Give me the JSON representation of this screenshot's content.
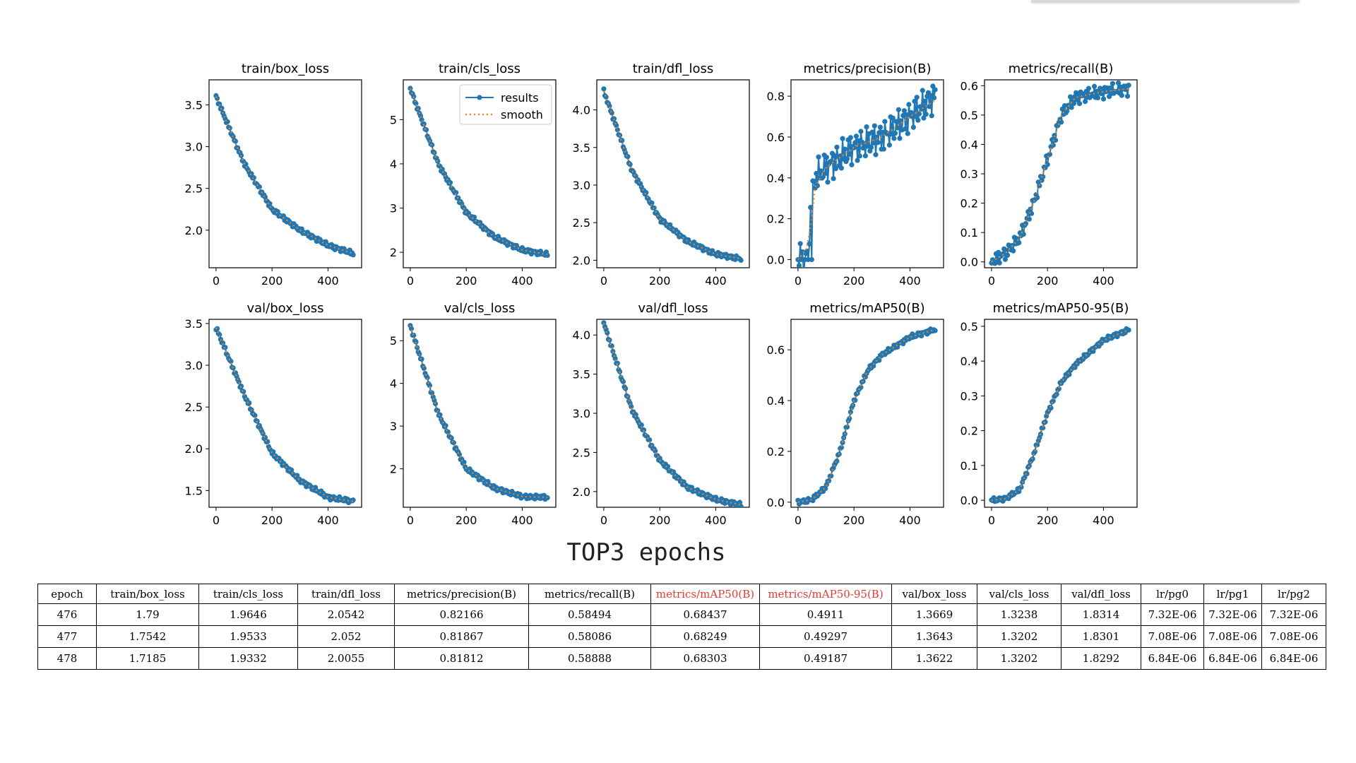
{
  "chart_data": [
    {
      "type": "line",
      "title": "train/box_loss",
      "ylim": [
        1.55,
        3.8
      ],
      "xlim": [
        -25,
        520
      ],
      "yticks": [
        2.0,
        2.5,
        3.0,
        3.5
      ],
      "xticks": [
        0,
        200,
        400
      ],
      "x": [
        0,
        100,
        200,
        300,
        400,
        490
      ],
      "series": [
        {
          "name": "results",
          "values": [
            3.6,
            2.8,
            2.25,
            2.0,
            1.82,
            1.72
          ]
        },
        {
          "name": "smooth",
          "values": [
            3.6,
            2.8,
            2.25,
            2.0,
            1.82,
            1.72
          ]
        }
      ]
    },
    {
      "type": "line",
      "title": "train/cls_loss",
      "ylim": [
        1.65,
        5.9
      ],
      "xlim": [
        -25,
        520
      ],
      "yticks": [
        2,
        3,
        4,
        5
      ],
      "xticks": [
        0,
        200,
        400
      ],
      "x": [
        0,
        100,
        200,
        300,
        400,
        490
      ],
      "series": [
        {
          "name": "results",
          "values": [
            5.7,
            4.0,
            2.9,
            2.35,
            2.05,
            1.95
          ]
        },
        {
          "name": "smooth",
          "values": [
            5.7,
            4.0,
            2.9,
            2.35,
            2.05,
            1.95
          ]
        }
      ]
    },
    {
      "type": "line",
      "title": "train/dfl_loss",
      "ylim": [
        1.9,
        4.4
      ],
      "xlim": [
        -25,
        520
      ],
      "yticks": [
        2.0,
        2.5,
        3.0,
        3.5,
        4.0
      ],
      "xticks": [
        0,
        200,
        400
      ],
      "x": [
        0,
        100,
        200,
        300,
        400,
        490
      ],
      "series": [
        {
          "name": "results",
          "values": [
            4.25,
            3.2,
            2.55,
            2.25,
            2.08,
            2.02
          ]
        },
        {
          "name": "smooth",
          "values": [
            4.25,
            3.2,
            2.55,
            2.25,
            2.08,
            2.02
          ]
        }
      ]
    },
    {
      "type": "line",
      "title": "metrics/precision(B)",
      "ylim": [
        -0.04,
        0.88
      ],
      "xlim": [
        -25,
        520
      ],
      "yticks": [
        0.0,
        0.2,
        0.4,
        0.6,
        0.8
      ],
      "xticks": [
        0,
        200,
        400
      ],
      "x": [
        0,
        30,
        50,
        60,
        100,
        200,
        300,
        400,
        490
      ],
      "series": [
        {
          "name": "results",
          "values": [
            0.0,
            0.0,
            0.3,
            0.4,
            0.45,
            0.55,
            0.6,
            0.7,
            0.8
          ]
        },
        {
          "name": "smooth",
          "values": [
            0.0,
            0.05,
            0.2,
            0.35,
            0.45,
            0.55,
            0.6,
            0.7,
            0.78
          ]
        }
      ]
    },
    {
      "type": "line",
      "title": "metrics/recall(B)",
      "ylim": [
        -0.02,
        0.62
      ],
      "xlim": [
        -25,
        520
      ],
      "yticks": [
        0.0,
        0.1,
        0.2,
        0.3,
        0.4,
        0.5,
        0.6
      ],
      "xticks": [
        0,
        200,
        400
      ],
      "x": [
        0,
        50,
        100,
        150,
        200,
        250,
        300,
        400,
        490
      ],
      "series": [
        {
          "name": "results",
          "values": [
            0.0,
            0.03,
            0.08,
            0.2,
            0.35,
            0.5,
            0.56,
            0.58,
            0.59
          ]
        },
        {
          "name": "smooth",
          "values": [
            0.0,
            0.03,
            0.08,
            0.2,
            0.35,
            0.5,
            0.56,
            0.58,
            0.59
          ]
        }
      ]
    },
    {
      "type": "line",
      "title": "val/box_loss",
      "ylim": [
        1.3,
        3.55
      ],
      "xlim": [
        -25,
        520
      ],
      "yticks": [
        1.5,
        2.0,
        2.5,
        3.0,
        3.5
      ],
      "xticks": [
        0,
        200,
        400
      ],
      "x": [
        0,
        100,
        200,
        300,
        400,
        490
      ],
      "series": [
        {
          "name": "results",
          "values": [
            3.45,
            2.65,
            1.95,
            1.62,
            1.42,
            1.37
          ]
        },
        {
          "name": "smooth",
          "values": [
            3.45,
            2.65,
            1.95,
            1.62,
            1.42,
            1.37
          ]
        }
      ]
    },
    {
      "type": "line",
      "title": "val/cls_loss",
      "ylim": [
        1.1,
        5.5
      ],
      "xlim": [
        -25,
        520
      ],
      "yticks": [
        2,
        3,
        4,
        5
      ],
      "xticks": [
        0,
        200,
        400
      ],
      "x": [
        0,
        100,
        200,
        300,
        400,
        490
      ],
      "series": [
        {
          "name": "results",
          "values": [
            5.35,
            3.3,
            2.0,
            1.55,
            1.35,
            1.33
          ]
        },
        {
          "name": "smooth",
          "values": [
            5.35,
            3.3,
            2.0,
            1.55,
            1.35,
            1.33
          ]
        }
      ]
    },
    {
      "type": "line",
      "title": "val/dfl_loss",
      "ylim": [
        1.8,
        4.2
      ],
      "xlim": [
        -25,
        520
      ],
      "yticks": [
        2.0,
        2.5,
        3.0,
        3.5,
        4.0
      ],
      "xticks": [
        0,
        200,
        400
      ],
      "x": [
        0,
        100,
        200,
        300,
        400,
        490
      ],
      "series": [
        {
          "name": "results",
          "values": [
            4.15,
            3.05,
            2.4,
            2.05,
            1.9,
            1.83
          ]
        },
        {
          "name": "smooth",
          "values": [
            4.15,
            3.05,
            2.4,
            2.05,
            1.9,
            1.83
          ]
        }
      ]
    },
    {
      "type": "line",
      "title": "metrics/mAP50(B)",
      "ylim": [
        -0.02,
        0.72
      ],
      "xlim": [
        -25,
        520
      ],
      "yticks": [
        0.0,
        0.2,
        0.4,
        0.6
      ],
      "xticks": [
        0,
        200,
        400
      ],
      "x": [
        0,
        50,
        100,
        150,
        200,
        250,
        300,
        400,
        490
      ],
      "series": [
        {
          "name": "results",
          "values": [
            0.0,
            0.01,
            0.06,
            0.2,
            0.4,
            0.52,
            0.58,
            0.65,
            0.68
          ]
        },
        {
          "name": "smooth",
          "values": [
            0.0,
            0.01,
            0.06,
            0.2,
            0.4,
            0.52,
            0.58,
            0.65,
            0.68
          ]
        }
      ]
    },
    {
      "type": "line",
      "title": "metrics/mAP50-95(B)",
      "ylim": [
        -0.02,
        0.52
      ],
      "xlim": [
        -25,
        520
      ],
      "yticks": [
        0.0,
        0.1,
        0.2,
        0.3,
        0.4,
        0.5
      ],
      "xticks": [
        0,
        200,
        400
      ],
      "x": [
        0,
        50,
        100,
        150,
        200,
        250,
        300,
        400,
        490
      ],
      "series": [
        {
          "name": "results",
          "values": [
            0.0,
            0.005,
            0.03,
            0.13,
            0.25,
            0.34,
            0.39,
            0.46,
            0.49
          ]
        },
        {
          "name": "smooth",
          "values": [
            0.0,
            0.005,
            0.03,
            0.13,
            0.25,
            0.34,
            0.39,
            0.46,
            0.49
          ]
        }
      ]
    }
  ],
  "legend": {
    "items": [
      "results",
      "smooth"
    ],
    "placement": "upper-right of train/cls_loss"
  },
  "colors": {
    "results": "#1f77b4",
    "smooth": "#ff7f0e",
    "highlight": "#e53935"
  },
  "table_heading": "TOP3 epochs",
  "table": {
    "columns": [
      "epoch",
      "train/box_loss",
      "train/cls_loss",
      "train/dfl_loss",
      "metrics/precision(B)",
      "metrics/recall(B)",
      "metrics/mAP50(B)",
      "metrics/mAP50-95(B)",
      "val/box_loss",
      "val/cls_loss",
      "val/dfl_loss",
      "lr/pg0",
      "lr/pg1",
      "lr/pg2"
    ],
    "rows": [
      [
        "476",
        "1.79",
        "1.9646",
        "2.0542",
        "0.82166",
        "0.58494",
        "0.68437",
        "0.4911",
        "1.3669",
        "1.3238",
        "1.8314",
        "7.32E-06",
        "7.32E-06",
        "7.32E-06"
      ],
      [
        "477",
        "1.7542",
        "1.9533",
        "2.052",
        "0.81867",
        "0.58086",
        "0.68249",
        "0.49297",
        "1.3643",
        "1.3202",
        "1.8301",
        "7.08E-06",
        "7.08E-06",
        "7.08E-06"
      ],
      [
        "478",
        "1.7185",
        "1.9332",
        "2.0055",
        "0.81812",
        "0.58888",
        "0.68303",
        "0.49187",
        "1.3622",
        "1.3202",
        "1.8292",
        "6.84E-06",
        "6.84E-06",
        "6.84E-06"
      ]
    ]
  }
}
